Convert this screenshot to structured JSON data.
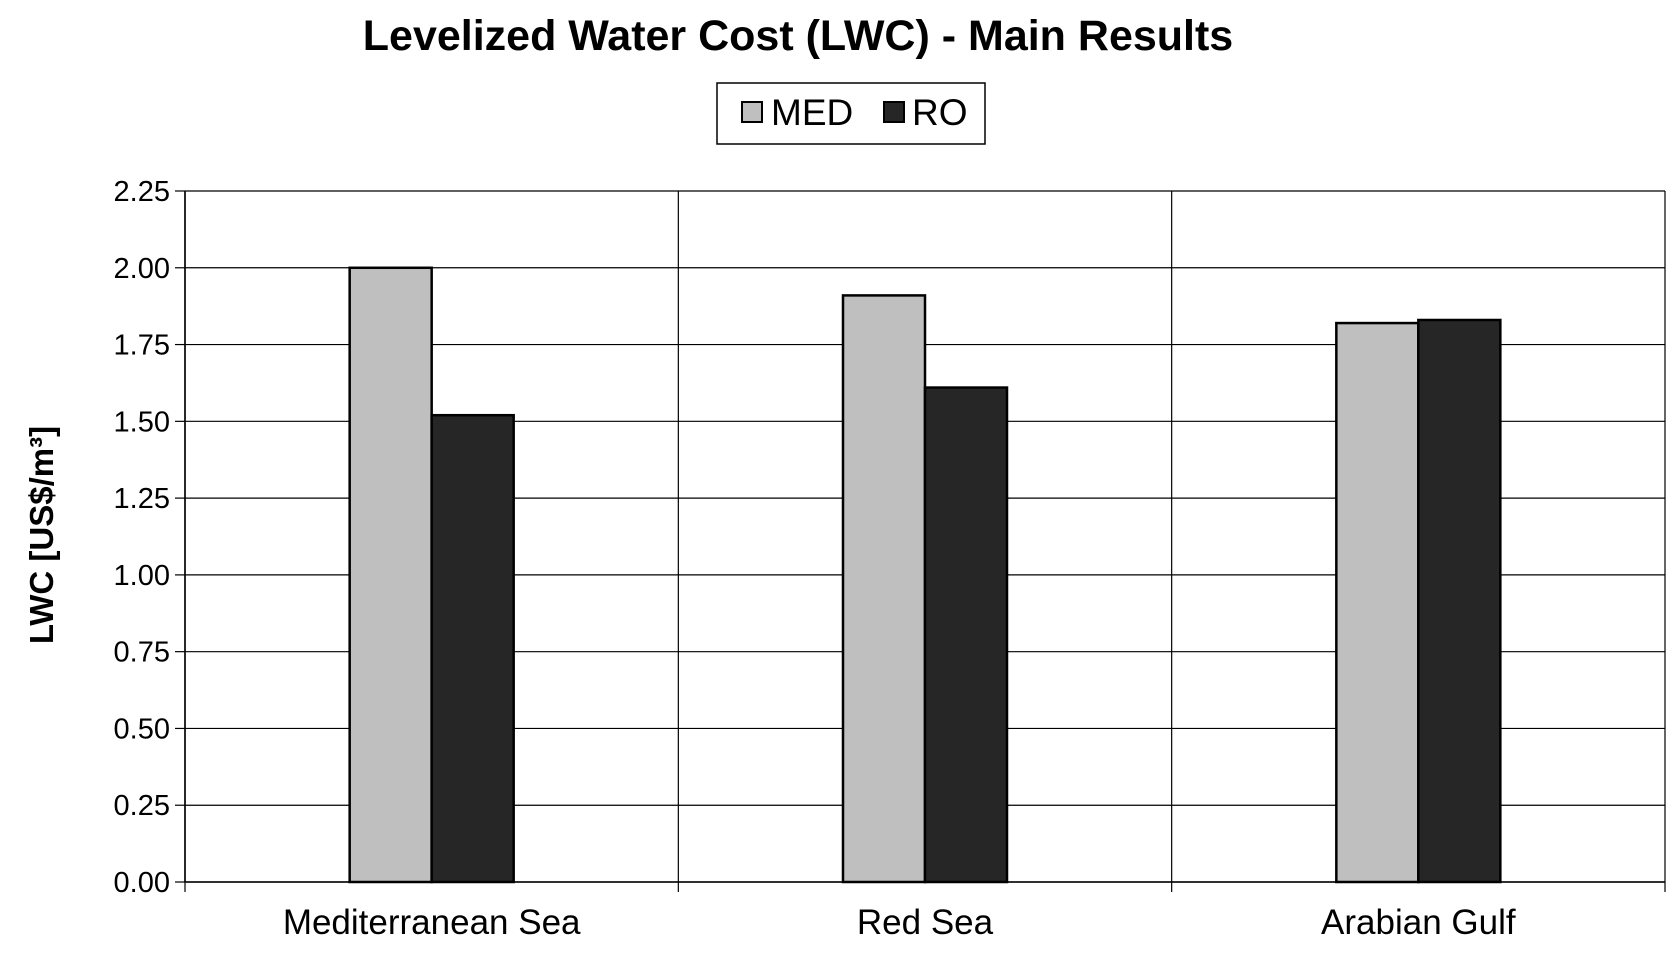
{
  "chart_data": {
    "type": "bar",
    "title": "Levelized Water Cost (LWC) - Main Results",
    "xlabel": "",
    "ylabel": "LWC [US$/m³]",
    "categories": [
      "Mediterranean Sea",
      "Red Sea",
      "Arabian Gulf"
    ],
    "series": [
      {
        "name": "MED",
        "values": [
          2.0,
          1.91,
          1.82
        ],
        "color": "#bfbfbf"
      },
      {
        "name": "RO",
        "values": [
          1.52,
          1.61,
          1.83
        ],
        "color": "#262626"
      }
    ],
    "ylim": [
      0,
      2.25
    ],
    "yticks": [
      "0.00",
      "0.25",
      "0.50",
      "0.75",
      "1.00",
      "1.25",
      "1.50",
      "1.75",
      "2.00",
      "2.25"
    ],
    "grid": true,
    "legend_position": "top-center"
  }
}
